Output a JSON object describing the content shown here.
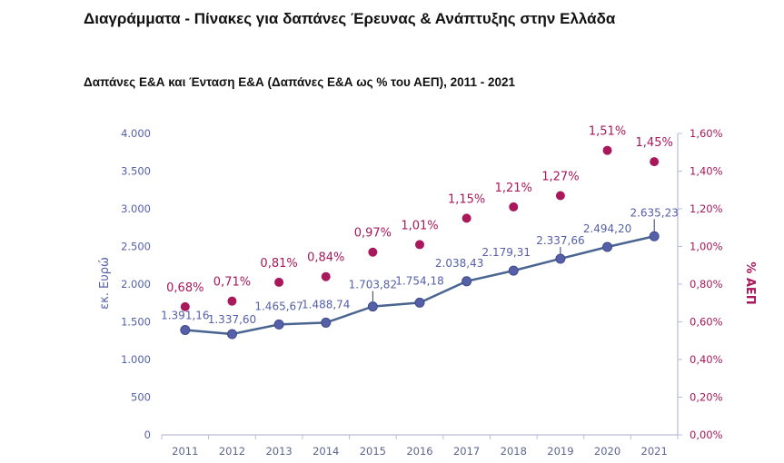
{
  "page": {
    "title": "Διαγράμματα - Πίνακες για δαπάνες Έρευνας & Ανάπτυξης στην Ελλάδα"
  },
  "chart_data": {
    "type": "line",
    "title": "Δαπάνες Ε&Α και Ένταση Ε&Α (Δαπάνες Ε&Α ως % του ΑΕΠ), 2011 - 2021",
    "x": [
      "2011",
      "2012",
      "2013",
      "2014",
      "2015",
      "2016",
      "2017",
      "2018",
      "2019",
      "2020",
      "2021"
    ],
    "y_left": {
      "label": "εκ. Ευρώ",
      "range": [
        0,
        4000
      ],
      "ticks": [
        "0",
        "500",
        "1.000",
        "1.500",
        "2.000",
        "2.500",
        "3.000",
        "3.500",
        "4.000"
      ],
      "tick_values": [
        0,
        500,
        1000,
        1500,
        2000,
        2500,
        3000,
        3500,
        4000
      ]
    },
    "y_right": {
      "label": "% ΑΕΠ",
      "range": [
        0,
        1.6
      ],
      "ticks": [
        "0,00%",
        "0,20%",
        "0,40%",
        "0,60%",
        "0,80%",
        "1,00%",
        "1,20%",
        "1,40%",
        "1,60%"
      ],
      "tick_values": [
        0,
        0.2,
        0.4,
        0.6,
        0.8,
        1.0,
        1.2,
        1.4,
        1.6
      ]
    },
    "series": [
      {
        "axis": "left",
        "render": "line-markers",
        "color": "#4a6590",
        "marker_color": "#5560a8",
        "label_color": "#5560a8",
        "values": [
          1391.16,
          1337.6,
          1465.67,
          1488.74,
          1703.82,
          1754.18,
          2038.43,
          2179.31,
          2337.66,
          2494.2,
          2635.23
        ],
        "labels": [
          "1.391,16",
          "1.337,60",
          "1.465,67",
          "1.488,74",
          "1.703,82",
          "1.754,18",
          "2.038,43",
          "2.179,31",
          "2.337,66",
          "2.494,20",
          "2.635,23"
        ]
      },
      {
        "axis": "right",
        "render": "markers",
        "color": "#a8185a",
        "label_color": "#a8185a",
        "values": [
          0.68,
          0.71,
          0.81,
          0.84,
          0.97,
          1.01,
          1.15,
          1.21,
          1.27,
          1.51,
          1.45
        ],
        "labels": [
          "0,68%",
          "0,71%",
          "0,81%",
          "0,84%",
          "0,97%",
          "1,01%",
          "1,15%",
          "1,21%",
          "1,27%",
          "1,51%",
          "1,45%"
        ]
      }
    ],
    "colors": {
      "left_axis_text": "#5560a8",
      "right_axis_text": "#a8185a",
      "axis_line": "#b9bbd6",
      "tick_text": "#5c6690"
    },
    "grid": false
  }
}
